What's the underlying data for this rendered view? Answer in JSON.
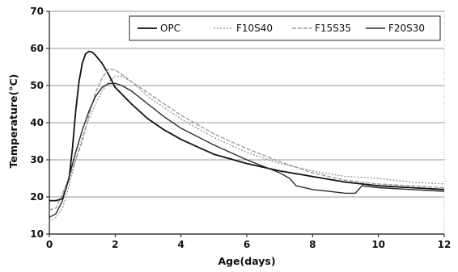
{
  "chart_data": {
    "type": "line",
    "title": "",
    "xlabel": "Age(days)",
    "ylabel": "Temperature(°C)",
    "xlim": [
      0,
      12
    ],
    "ylim": [
      10,
      70
    ],
    "xticks": [
      0,
      2,
      4,
      6,
      8,
      10,
      12
    ],
    "yticks": [
      10,
      20,
      30,
      40,
      50,
      60,
      70
    ],
    "grid": "horizontal",
    "legend_position": "top-right",
    "series": [
      {
        "name": "OPC",
        "color": "#111111",
        "dash": "",
        "width": 1.8,
        "x": [
          0,
          0.2,
          0.4,
          0.6,
          0.7,
          0.8,
          0.9,
          1.0,
          1.1,
          1.2,
          1.3,
          1.4,
          1.6,
          1.8,
          2.0,
          2.5,
          3.0,
          3.5,
          4.0,
          4.5,
          5.0,
          6.0,
          7.0,
          8.0,
          9.0,
          10.0,
          11.0,
          12.0
        ],
        "y": [
          19,
          19,
          19.5,
          25,
          33,
          43,
          51,
          56,
          58.5,
          59.2,
          59,
          58.2,
          56,
          53,
          49.5,
          45,
          41,
          38,
          35.5,
          33.5,
          31.5,
          29,
          27,
          25.5,
          24,
          23,
          22.5,
          22
        ]
      },
      {
        "name": "F10S40",
        "color": "#9a9a9a",
        "dash": "2,2",
        "width": 1.4,
        "x": [
          0,
          0.2,
          0.4,
          0.6,
          0.8,
          1.0,
          1.2,
          1.4,
          1.6,
          1.8,
          2.0,
          2.2,
          2.5,
          3.0,
          3.5,
          4.0,
          5.0,
          6.0,
          7.0,
          8.0,
          9.0,
          10.0,
          11.0,
          12.0
        ],
        "y": [
          13.5,
          14.5,
          17,
          23,
          30,
          36,
          41,
          45,
          48.5,
          51,
          52.5,
          52.5,
          51,
          47,
          44,
          41,
          36,
          32,
          29,
          27,
          25.5,
          25,
          24,
          23.5
        ]
      },
      {
        "name": "F15S35",
        "color": "#9a9a9a",
        "dash": "5,2",
        "width": 1.4,
        "x": [
          0,
          0.2,
          0.4,
          0.6,
          0.8,
          1.0,
          1.2,
          1.4,
          1.6,
          1.8,
          2.0,
          2.2,
          2.5,
          3.0,
          3.5,
          4.0,
          5.0,
          6.0,
          7.0,
          8.0,
          9.0,
          10.0,
          11.0,
          12.0
        ],
        "y": [
          16.5,
          17,
          21,
          25,
          30,
          35,
          42,
          48,
          52,
          54.5,
          54.2,
          53,
          51,
          48,
          45,
          42,
          37,
          33,
          29.5,
          26.5,
          24.5,
          23.5,
          23,
          22.5
        ]
      },
      {
        "name": "F20S30",
        "color": "#2a2a2a",
        "dash": "",
        "width": 1.4,
        "x": [
          0,
          0.2,
          0.4,
          0.6,
          0.8,
          1.0,
          1.2,
          1.4,
          1.6,
          1.8,
          2.0,
          2.2,
          2.5,
          3.0,
          3.5,
          4.0,
          5.0,
          6.0,
          7.0,
          7.3,
          7.5,
          8.0,
          8.5,
          9.0,
          9.3,
          9.5,
          10.0,
          11.0,
          12.0
        ],
        "y": [
          14.5,
          15.5,
          19,
          25.5,
          32,
          38,
          43,
          47,
          49.5,
          50.5,
          50.6,
          50,
          48.5,
          45,
          41.5,
          38.5,
          34,
          30,
          26.5,
          25,
          23,
          22,
          21.5,
          21,
          21,
          23,
          22.5,
          22,
          21.5
        ]
      }
    ]
  }
}
